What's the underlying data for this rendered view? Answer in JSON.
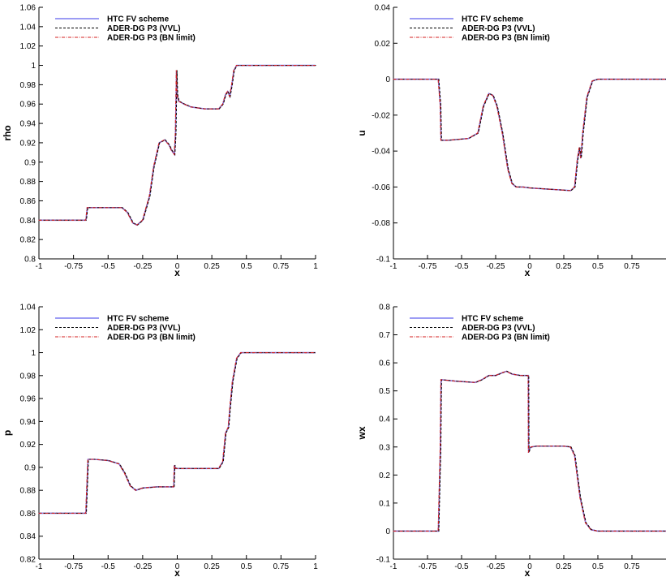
{
  "legend": [
    {
      "name": "HTC FV scheme",
      "color": "#7b7bf0",
      "dash": ""
    },
    {
      "name": "ADER-DG P3 (VVL)",
      "color": "#000000",
      "dash": "3,2"
    },
    {
      "name": "ADER-DG P3 (BN limit)",
      "color": "#d42020",
      "dash": "4,1.5,1,1.5"
    }
  ],
  "chart_data": [
    {
      "id": "rho",
      "type": "line",
      "xlabel": "x",
      "ylabel": "rho",
      "xlim": [
        -1,
        1
      ],
      "ylim": [
        0.8,
        1.06
      ],
      "xticks": [
        -1,
        -0.75,
        -0.5,
        -0.25,
        0,
        0.25,
        0.5,
        0.75,
        1
      ],
      "xtick_labels": [
        "-1",
        "-0.75",
        "-0.5",
        "-0.25",
        "0",
        "0.25",
        "0.5",
        "0.75",
        "1"
      ],
      "yticks": [
        0.8,
        0.82,
        0.84,
        0.86,
        0.88,
        0.9,
        0.92,
        0.94,
        0.96,
        0.98,
        1,
        1.02,
        1.04,
        1.06
      ],
      "ytick_labels": [
        "0.8",
        "0.82",
        "0.84",
        "0.86",
        "0.88",
        "0.9",
        "0.92",
        "0.94",
        "0.96",
        "0.98",
        "1",
        "1.02",
        "1.04",
        "1.06"
      ],
      "legend": "top-left",
      "x": [
        -1,
        -0.66,
        -0.65,
        -0.6,
        -0.5,
        -0.4,
        -0.36,
        -0.32,
        -0.29,
        -0.25,
        -0.2,
        -0.17,
        -0.13,
        -0.09,
        -0.06,
        -0.04,
        -0.02,
        -0.012,
        -0.005,
        0,
        0.01,
        0.05,
        0.1,
        0.2,
        0.3,
        0.33,
        0.35,
        0.365,
        0.38,
        0.395,
        0.41,
        0.43,
        0.46,
        0.5,
        1
      ],
      "series": [
        {
          "values": [
            0.84,
            0.84,
            0.853,
            0.853,
            0.853,
            0.853,
            0.848,
            0.837,
            0.835,
            0.84,
            0.865,
            0.895,
            0.92,
            0.923,
            0.918,
            0.912,
            0.908,
            0.93,
            0.995,
            0.97,
            0.963,
            0.96,
            0.957,
            0.955,
            0.955,
            0.96,
            0.97,
            0.973,
            0.968,
            0.98,
            0.995,
            1.0,
            1.0,
            1.0,
            1.0
          ]
        }
      ]
    },
    {
      "id": "u",
      "type": "line",
      "xlabel": "x",
      "ylabel": "u",
      "xlim": [
        -1,
        1
      ],
      "ylim": [
        -0.1,
        0.04
      ],
      "xticks": [
        -1,
        -0.75,
        -0.5,
        -0.25,
        0,
        0.25,
        0.5,
        0.75
      ],
      "xtick_labels": [
        "-1",
        "-0.75",
        "-0.5",
        "-0.25",
        "0",
        "0.25",
        "0.5",
        "0.75"
      ],
      "yticks": [
        -0.1,
        -0.08,
        -0.06,
        -0.04,
        -0.02,
        0,
        0.02,
        0.04
      ],
      "ytick_labels": [
        "-0.1",
        "-0.08",
        "-0.06",
        "-0.04",
        "-0.02",
        "0",
        "0.02",
        "0.04"
      ],
      "legend": "top-left",
      "x": [
        -1,
        -0.67,
        -0.655,
        -0.65,
        -0.6,
        -0.45,
        -0.38,
        -0.34,
        -0.3,
        -0.27,
        -0.24,
        -0.2,
        -0.16,
        -0.13,
        -0.1,
        -0.05,
        0,
        0.1,
        0.2,
        0.3,
        0.33,
        0.35,
        0.365,
        0.375,
        0.38,
        0.39,
        0.42,
        0.46,
        0.5,
        1
      ],
      "series": [
        {
          "values": [
            0,
            0,
            -0.015,
            -0.034,
            -0.034,
            -0.033,
            -0.03,
            -0.015,
            -0.008,
            -0.009,
            -0.015,
            -0.03,
            -0.05,
            -0.058,
            -0.06,
            -0.06,
            -0.0605,
            -0.061,
            -0.0615,
            -0.062,
            -0.06,
            -0.045,
            -0.038,
            -0.044,
            -0.04,
            -0.03,
            -0.01,
            -0.001,
            0,
            0
          ]
        }
      ]
    },
    {
      "id": "p",
      "type": "line",
      "xlabel": "x",
      "ylabel": "p",
      "xlim": [
        -1,
        1
      ],
      "ylim": [
        0.82,
        1.04
      ],
      "xticks": [
        -1,
        -0.75,
        -0.5,
        -0.25,
        0,
        0.25,
        0.5,
        0.75,
        1
      ],
      "xtick_labels": [
        "-1",
        "-0.75",
        "-0.5",
        "-0.25",
        "0",
        "0.25",
        "0.5",
        "0.75",
        "1"
      ],
      "yticks": [
        0.82,
        0.84,
        0.86,
        0.88,
        0.9,
        0.92,
        0.94,
        0.96,
        0.98,
        1,
        1.02,
        1.04
      ],
      "ytick_labels": [
        "0.82",
        "0.84",
        "0.86",
        "0.88",
        "0.9",
        "0.92",
        "0.94",
        "0.96",
        "0.98",
        "1",
        "1.02",
        "1.04"
      ],
      "legend": "top-left",
      "x": [
        -1,
        -0.66,
        -0.645,
        -0.6,
        -0.5,
        -0.42,
        -0.38,
        -0.34,
        -0.3,
        -0.25,
        -0.15,
        -0.05,
        -0.025,
        -0.02,
        -0.015,
        -0.01,
        0,
        0.1,
        0.2,
        0.3,
        0.33,
        0.35,
        0.37,
        0.38,
        0.4,
        0.43,
        0.46,
        0.5,
        1
      ],
      "series": [
        {
          "values": [
            0.86,
            0.86,
            0.907,
            0.907,
            0.906,
            0.903,
            0.895,
            0.884,
            0.88,
            0.882,
            0.883,
            0.883,
            0.883,
            0.902,
            0.9,
            0.899,
            0.899,
            0.899,
            0.899,
            0.899,
            0.905,
            0.93,
            0.935,
            0.95,
            0.975,
            0.995,
            1.0,
            1.0,
            1.0
          ]
        }
      ]
    },
    {
      "id": "wx",
      "type": "line",
      "xlabel": "x",
      "ylabel": "wx",
      "xlim": [
        -1,
        1
      ],
      "ylim": [
        -0.1,
        0.8
      ],
      "xticks": [
        -1,
        -0.75,
        -0.5,
        -0.25,
        0,
        0.25,
        0.5,
        0.75
      ],
      "xtick_labels": [
        "-1",
        "-0.75",
        "-0.5",
        "-0.25",
        "0",
        "0.25",
        "0.5",
        "0.75"
      ],
      "yticks": [
        -0.1,
        0,
        0.1,
        0.2,
        0.3,
        0.4,
        0.5,
        0.6,
        0.7,
        0.8
      ],
      "ytick_labels": [
        "-0.1",
        "0",
        "0.1",
        "0.2",
        "0.3",
        "0.4",
        "0.5",
        "0.6",
        "0.7",
        "0.8"
      ],
      "legend": "top-left",
      "x": [
        -1,
        -0.67,
        -0.655,
        -0.65,
        -0.55,
        -0.4,
        -0.35,
        -0.3,
        -0.25,
        -0.2,
        -0.17,
        -0.13,
        -0.07,
        -0.02,
        -0.01,
        -0.008,
        0,
        0.01,
        0.05,
        0.15,
        0.25,
        0.3,
        0.33,
        0.37,
        0.41,
        0.45,
        0.5,
        1
      ],
      "series": [
        {
          "values": [
            0,
            0,
            0.3,
            0.54,
            0.535,
            0.53,
            0.54,
            0.555,
            0.555,
            0.565,
            0.57,
            0.56,
            0.555,
            0.555,
            0.555,
            0.28,
            0.295,
            0.3,
            0.303,
            0.303,
            0.303,
            0.3,
            0.27,
            0.12,
            0.03,
            0.005,
            0,
            0
          ]
        }
      ]
    }
  ]
}
